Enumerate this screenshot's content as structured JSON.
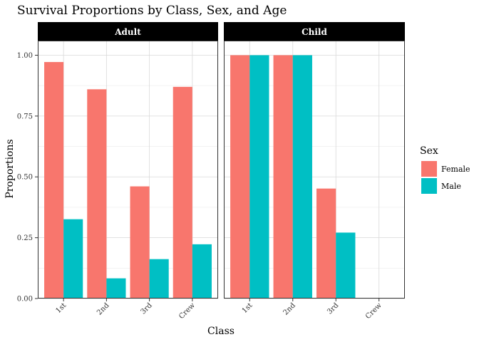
{
  "chart_data": {
    "type": "bar",
    "title": "Survival Proportions by Class, Sex, and Age",
    "xlabel": "Class",
    "ylabel": "Proportions",
    "ylim": [
      0,
      1.06
    ],
    "yticks": [
      "0.00",
      "0.25",
      "0.50",
      "0.75",
      "1.00"
    ],
    "ytick_values": [
      0,
      0.25,
      0.5,
      0.75,
      1.0
    ],
    "categories": [
      "1st",
      "2nd",
      "3rd",
      "Crew"
    ],
    "grid": true,
    "legend": {
      "title": "Sex",
      "position": "right"
    },
    "series_colors": {
      "Female": "#F8766D",
      "Male": "#00BFC4"
    },
    "facets": [
      {
        "name": "Adult",
        "series": [
          {
            "name": "Female",
            "values": [
              0.972,
              0.86,
              0.461,
              0.87
            ]
          },
          {
            "name": "Male",
            "values": [
              0.326,
              0.083,
              0.162,
              0.223
            ]
          }
        ]
      },
      {
        "name": "Child",
        "series": [
          {
            "name": "Female",
            "values": [
              1.0,
              1.0,
              0.452,
              null
            ]
          },
          {
            "name": "Male",
            "values": [
              1.0,
              1.0,
              0.271,
              null
            ]
          }
        ]
      }
    ]
  }
}
